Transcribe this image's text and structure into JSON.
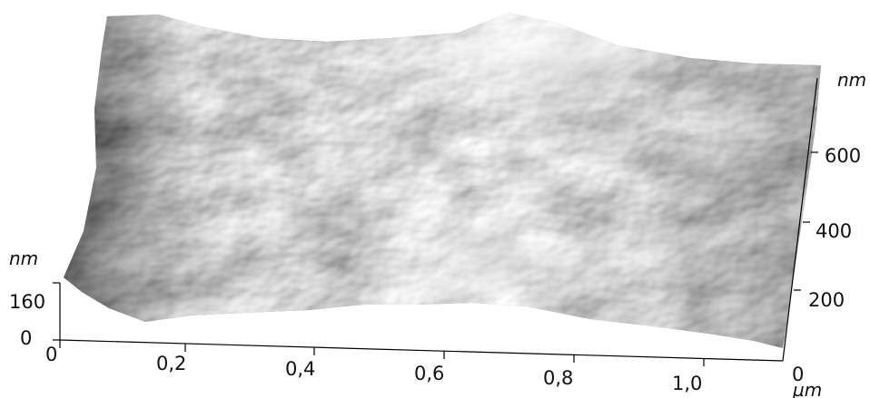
{
  "figure": {
    "x_axis": {
      "ticks": [
        "0",
        "0,2",
        "0,4",
        "0,6",
        "0,8",
        "1,0"
      ],
      "unit": "µm"
    },
    "y_axis": {
      "ticks": [
        "0",
        "200",
        "400",
        "600"
      ],
      "unit": "nm"
    },
    "z_axis": {
      "ticks": [
        "0",
        "160"
      ],
      "unit": "nm"
    }
  }
}
